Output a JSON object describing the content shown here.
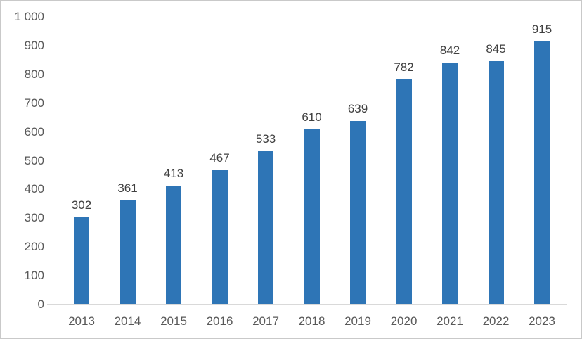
{
  "chart_data": {
    "type": "bar",
    "title": "",
    "xlabel": "",
    "ylabel": "",
    "categories": [
      "2013",
      "2014",
      "2015",
      "2016",
      "2017",
      "2018",
      "2019",
      "2020",
      "2021",
      "2022",
      "2023"
    ],
    "values": [
      302,
      361,
      413,
      467,
      533,
      610,
      639,
      782,
      842,
      845,
      915
    ],
    "value_labels": [
      "302",
      "361",
      "413",
      "467",
      "533",
      "610",
      "639",
      "782",
      "842",
      "845",
      "915"
    ],
    "ylim": [
      0,
      1000
    ],
    "y_tick_values": [
      0,
      100,
      200,
      300,
      400,
      500,
      600,
      700,
      800,
      900,
      1000
    ],
    "y_tick_labels": [
      "0",
      "100",
      "200",
      "300",
      "400",
      "500",
      "600",
      "700",
      "800",
      "900",
      "1 000"
    ],
    "grid": false,
    "legend_position": "none",
    "colors": {
      "bar": "#2E75B6",
      "axis_line": "#D9D9D9",
      "tick_label": "#595959",
      "value_label": "#404040",
      "frame_border": "#C9C9C9",
      "background": "#FFFFFF"
    }
  }
}
